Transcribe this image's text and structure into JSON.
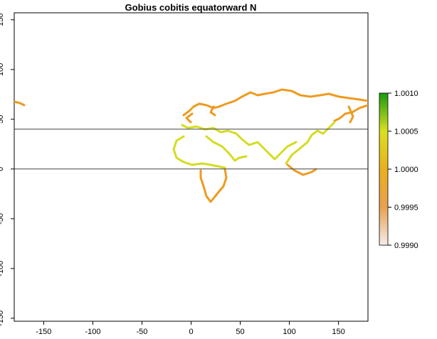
{
  "chart_data": {
    "type": "raster-map",
    "title": "Gobius cobitis equatorward N",
    "xlim": [
      -180,
      180
    ],
    "ylim": [
      -153,
      157
    ],
    "xticks": [
      -150,
      -100,
      -50,
      0,
      50,
      100,
      150
    ],
    "yticks": [
      -150,
      -100,
      -50,
      0,
      50,
      100,
      150
    ],
    "hlines": [
      40,
      0
    ],
    "colorbar": {
      "lim": [
        0.999,
        1.001
      ],
      "ticks": [
        {
          "value": 0.999,
          "label": "0.9990"
        },
        {
          "value": 0.9995,
          "label": "0.9995"
        },
        {
          "value": 1,
          "label": "1.0000"
        },
        {
          "value": 1.0005,
          "label": "1.0005"
        },
        {
          "value": 1.001,
          "label": "1.0010"
        }
      ],
      "colors": [
        "#f5ecec",
        "#e8a050",
        "#eab020",
        "#d8e020",
        "#1a9a10"
      ]
    }
  }
}
